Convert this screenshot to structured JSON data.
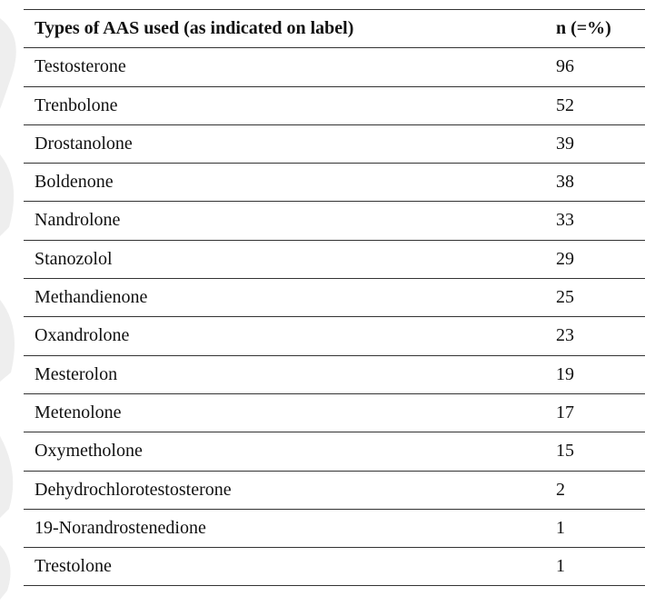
{
  "table": {
    "header": [
      "Types of AAS used (as indicated on label)",
      "n (=%)"
    ],
    "rows": [
      [
        "Testosterone",
        96
      ],
      [
        "Trenbolone",
        52
      ],
      [
        "Drostanolone",
        39
      ],
      [
        "Boldenone",
        38
      ],
      [
        "Nandrolone",
        33
      ],
      [
        "Stanozolol",
        29
      ],
      [
        "Methandienone",
        25
      ],
      [
        "Oxandrolone",
        23
      ],
      [
        "Mesterolon",
        19
      ],
      [
        "Metenolone",
        17
      ],
      [
        "Oxymetholone",
        15
      ],
      [
        "Dehydrochlorotestosterone",
        2
      ],
      [
        "19-Norandrostenedione",
        1
      ],
      [
        "Trestolone",
        1
      ]
    ]
  }
}
